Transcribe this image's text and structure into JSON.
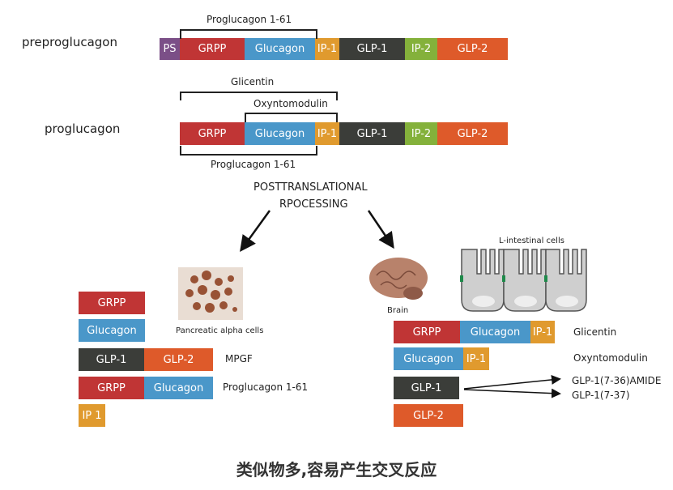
{
  "colors": {
    "PS": "#7b4f87",
    "GRPP": "#c03535",
    "Glucagon": "#4a97c9",
    "IP": "#e09a2e",
    "GLP1": "#3b3d39",
    "IP2": "#84b13b",
    "GLP2": "#de5a2a"
  },
  "rows": {
    "preproglucagon": "preproglucagon",
    "proglucagon": "proglucagon"
  },
  "segments": {
    "PS": "PS",
    "GRPP": "GRPP",
    "Glucagon": "Glucagon",
    "IP1": "IP-1",
    "GLP1": "GLP-1",
    "IP2": "IP-2",
    "GLP2": "GLP-2",
    "IP1_alt": "IP 1"
  },
  "brackets": {
    "proglucagon_1_61": "Proglucagon 1-61",
    "glicentin": "Glicentin",
    "oxyntomodulin": "Oxyntomodulin"
  },
  "processing": {
    "line1": "POSTTRANSLATIONAL",
    "line2": "RPOCESSING"
  },
  "pancreas": {
    "label": "Pancreatic alpha cells",
    "mpgf": "MPGF",
    "proglucagon_1_61": "Proglucagon 1-61"
  },
  "intestine": {
    "brain_label": "Brain",
    "cells_label": "L-intestinal cells",
    "glicentin": "Glicentin",
    "oxyntomodulin": "Oxyntomodulin",
    "glp1_amide": "GLP-1(7-36)AMIDE",
    "glp1_37": "GLP-1(7-37)"
  },
  "caption": "类似物多,容易产生交叉反应"
}
